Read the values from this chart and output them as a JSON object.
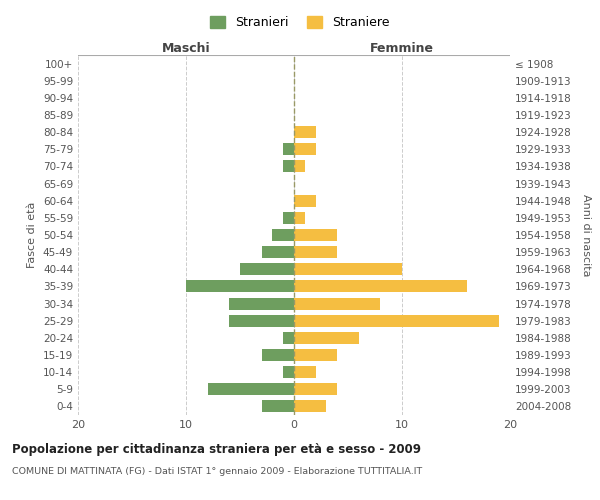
{
  "age_groups": [
    "0-4",
    "5-9",
    "10-14",
    "15-19",
    "20-24",
    "25-29",
    "30-34",
    "35-39",
    "40-44",
    "45-49",
    "50-54",
    "55-59",
    "60-64",
    "65-69",
    "70-74",
    "75-79",
    "80-84",
    "85-89",
    "90-94",
    "95-99",
    "100+"
  ],
  "birth_years": [
    "2004-2008",
    "1999-2003",
    "1994-1998",
    "1989-1993",
    "1984-1988",
    "1979-1983",
    "1974-1978",
    "1969-1973",
    "1964-1968",
    "1959-1963",
    "1954-1958",
    "1949-1953",
    "1944-1948",
    "1939-1943",
    "1934-1938",
    "1929-1933",
    "1924-1928",
    "1919-1923",
    "1914-1918",
    "1909-1913",
    "≤ 1908"
  ],
  "maschi": [
    3,
    8,
    1,
    3,
    1,
    6,
    6,
    10,
    5,
    3,
    2,
    1,
    0,
    0,
    1,
    1,
    0,
    0,
    0,
    0,
    0
  ],
  "femmine": [
    3,
    4,
    2,
    4,
    6,
    19,
    8,
    16,
    10,
    4,
    4,
    1,
    2,
    0,
    1,
    2,
    2,
    0,
    0,
    0,
    0
  ],
  "male_color": "#6e9e5f",
  "female_color": "#f5be41",
  "background_color": "#ffffff",
  "grid_color": "#cccccc",
  "title": "Popolazione per cittadinanza straniera per età e sesso - 2009",
  "subtitle": "COMUNE DI MATTINATA (FG) - Dati ISTAT 1° gennaio 2009 - Elaborazione TUTTITALIA.IT",
  "xlabel_left": "Maschi",
  "xlabel_right": "Femmine",
  "ylabel_left": "Fasce di età",
  "ylabel_right": "Anni di nascita",
  "legend_male": "Stranieri",
  "legend_female": "Straniere",
  "xlim": 20,
  "bar_height": 0.7
}
